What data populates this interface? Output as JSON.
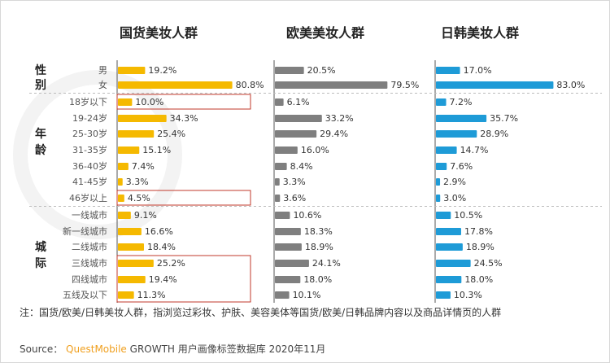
{
  "chart_data": {
    "type": "bar",
    "orientation": "horizontal",
    "groups": [
      {
        "label": "性别",
        "categories": [
          "男",
          "女"
        ]
      },
      {
        "label": "年龄",
        "categories": [
          "18岁以下",
          "19-24岁",
          "25-30岁",
          "31-35岁",
          "36-40岁",
          "41-45岁",
          "46岁以上"
        ]
      },
      {
        "label": "城际",
        "categories": [
          "一线城市",
          "新一线城市",
          "二线城市",
          "三线城市",
          "四线城市",
          "五线及以下"
        ]
      }
    ],
    "categories": [
      "男",
      "女",
      "18岁以下",
      "19-24岁",
      "25-30岁",
      "31-35岁",
      "36-40岁",
      "41-45岁",
      "46岁以上",
      "一线城市",
      "新一线城市",
      "二线城市",
      "三线城市",
      "四线城市",
      "五线及以下"
    ],
    "series": [
      {
        "name": "国货美妆人群",
        "color": "#f5b900",
        "values": [
          19.2,
          80.8,
          10.0,
          34.3,
          25.4,
          15.1,
          7.4,
          3.3,
          4.5,
          9.1,
          16.6,
          18.4,
          25.2,
          19.4,
          11.3
        ]
      },
      {
        "name": "欧美美妆人群",
        "color": "#7f7f7f",
        "values": [
          20.5,
          79.5,
          6.1,
          33.2,
          29.4,
          16.0,
          8.4,
          3.3,
          3.6,
          10.6,
          18.3,
          18.9,
          24.1,
          18.0,
          10.1
        ]
      },
      {
        "name": "日韩美妆人群",
        "color": "#1e9bd7",
        "values": [
          17.0,
          83.0,
          7.2,
          35.7,
          28.9,
          14.7,
          7.6,
          2.9,
          3.0,
          10.5,
          17.8,
          18.9,
          24.5,
          18.0,
          10.3
        ]
      }
    ],
    "value_suffix": "%",
    "highlighted_categories": [
      [
        "18岁以下"
      ],
      [
        "46岁以上"
      ],
      [
        "三线城市",
        "四线城市",
        "五线及以下"
      ]
    ],
    "highlight_color": "#c0392b"
  },
  "watermark": "QUEST MOBILE",
  "note": "注：国货/欧美/日韩美妆人群，指浏览过彩妆、护肤、美容美体等国货/欧美/日韩品牌内容以及商品详情页的人群",
  "source": {
    "label": "Source：",
    "brand": "QuestMobile",
    "text": "GROWTH 用户画像标签数据库 2020年11月"
  }
}
